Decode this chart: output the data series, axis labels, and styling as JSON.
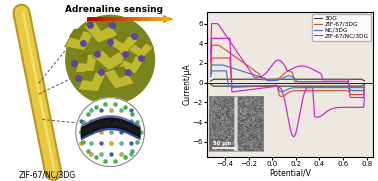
{
  "title": "Adrenaline sensing",
  "xlabel": "Potential/V",
  "ylabel": "Current/μA",
  "xlim": [
    -0.55,
    0.85
  ],
  "ylim": [
    -7.5,
    7.2
  ],
  "xticks": [
    -0.4,
    -0.2,
    0.0,
    0.2,
    0.4,
    0.6,
    0.8
  ],
  "yticks": [
    -6,
    -4,
    -2,
    0,
    2,
    4,
    6
  ],
  "legend": [
    "3DG",
    "ZIF-67/3DG",
    "NC/3DG",
    "ZIF-67/NC/3DG"
  ],
  "colors": {
    "3DG": "#404040",
    "ZIF-67/3DG": "#e05030",
    "NC/3DG": "#5070c8",
    "ZIF-67/NC/3DG": "#d020d0"
  },
  "background_color": "#ede8e0",
  "rod_color_outer": "#b89820",
  "rod_color_inner": "#e8c840",
  "circle1_color": "#7a8520",
  "facet_fill": "#c0b830",
  "facet_edge": "#808010",
  "dot_color": "#6040b0",
  "mol_colors": [
    "#30a030",
    "#3050c0",
    "#c8c020"
  ],
  "wave_color": "#1020a0",
  "label_text": "ZIF-67/NC/3DG",
  "arrow_colors": [
    "#c82000",
    "#e04000",
    "#f06000",
    "#f88000",
    "#ffa000",
    "#ffc000"
  ]
}
